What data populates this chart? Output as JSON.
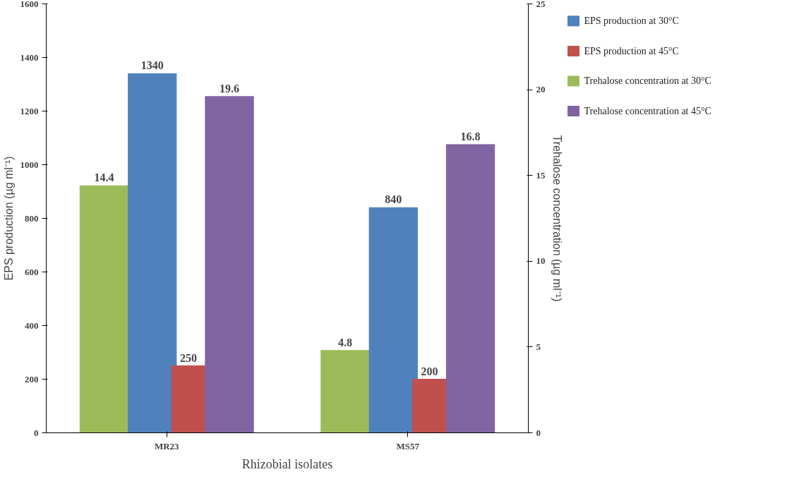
{
  "chart_data": {
    "type": "bar",
    "xlabel": "Rhizobial isolates",
    "ylabel": "EPS production (µg ml⁻¹)",
    "y2label": "Trehalose concentration (µg ml⁻¹)",
    "categories": [
      "MR23",
      "MS57"
    ],
    "series": [
      {
        "name": "EPS production  at 30°C",
        "color": "#4f81bd",
        "values": [
          1340,
          840
        ]
      },
      {
        "name": "EPS production  at 45°C",
        "color": "#c0504d",
        "values": [
          250,
          200
        ]
      },
      {
        "name": "Trehalose concentration at 30°C",
        "color": "#9bbb59",
        "values": [
          14.4,
          4.8
        ],
        "axis": "y2"
      },
      {
        "name": "Trehalose concentration at 45°C",
        "color": "#8064a2",
        "values": [
          19.6,
          16.8
        ],
        "axis": "y2"
      }
    ],
    "ylim": [
      0,
      1600
    ],
    "yticks": [
      0,
      200,
      400,
      600,
      800,
      1000,
      1200,
      1400,
      1600
    ],
    "y2lim": [
      0,
      25
    ],
    "y2ticks": [
      0,
      5,
      10,
      15,
      20,
      25
    ],
    "data_labels": true,
    "grid": false,
    "legend": "right"
  }
}
